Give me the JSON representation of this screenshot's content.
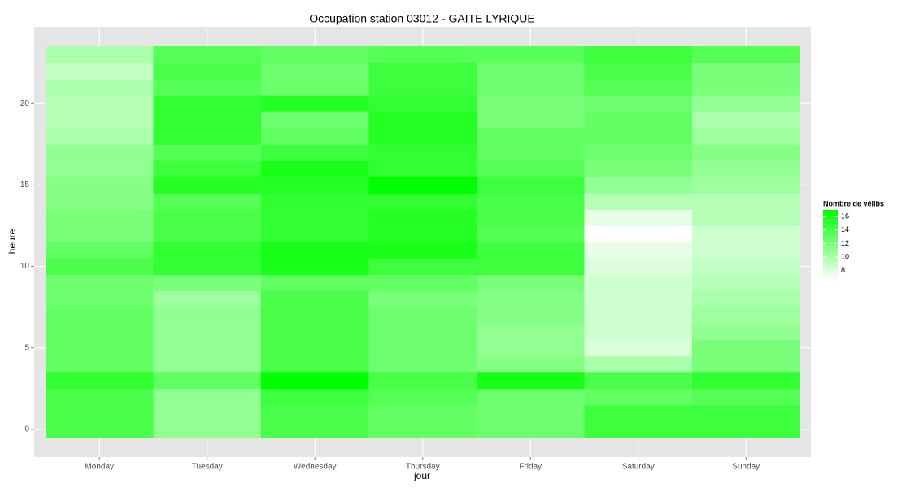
{
  "chart_data": {
    "type": "heatmap",
    "title": "Occupation station 03012 - GAITE LYRIQUE",
    "x_label": "jour",
    "y_label": "heure",
    "categories": [
      "Monday",
      "Tuesday",
      "Wednesday",
      "Thursday",
      "Friday",
      "Saturday",
      "Sunday"
    ],
    "y": [
      0,
      1,
      2,
      3,
      4,
      5,
      6,
      7,
      8,
      9,
      10,
      11,
      12,
      13,
      14,
      15,
      16,
      17,
      18,
      19,
      20,
      21,
      22,
      23
    ],
    "z": [
      [
        14,
        14,
        14,
        15,
        13,
        13,
        13,
        13,
        12.5,
        12.5,
        14,
        13,
        12,
        12,
        11.5,
        11.5,
        11,
        11,
        10,
        9.5,
        9.5,
        10,
        9,
        10
      ],
      [
        11,
        11,
        11,
        13,
        11,
        11,
        11,
        11,
        10.5,
        12,
        15,
        15,
        14,
        14,
        13.5,
        15.5,
        14.5,
        13.5,
        15,
        15,
        15,
        13.5,
        14,
        13.5
      ],
      [
        14,
        14,
        14.5,
        17,
        14,
        14,
        14,
        14,
        14,
        13,
        16,
        16,
        15,
        15,
        15,
        15.5,
        16,
        14.5,
        13,
        12.5,
        15.5,
        12.5,
        12.5,
        13
      ],
      [
        13,
        13,
        13.5,
        14,
        12.5,
        12.5,
        12.5,
        12.5,
        12,
        13,
        14.5,
        16,
        15.5,
        15.5,
        15,
        17,
        15,
        15,
        15.5,
        15.5,
        15,
        14.5,
        14.5,
        13.5
      ],
      [
        12.5,
        12.5,
        12.5,
        16,
        11.5,
        11,
        11,
        11.5,
        11.5,
        12,
        14.5,
        14.5,
        13.5,
        14,
        14,
        14.5,
        13.5,
        13,
        13,
        12,
        12,
        12.5,
        12.5,
        13.5
      ],
      [
        14.5,
        14.5,
        13,
        14,
        10,
        8,
        8.5,
        8.5,
        8.5,
        8.5,
        8,
        7.5,
        6.5,
        7.5,
        9.5,
        11,
        12,
        12.5,
        13,
        13,
        12.5,
        13.5,
        14,
        14.5
      ],
      [
        14.5,
        14.5,
        13.5,
        15,
        12,
        12,
        11,
        10.5,
        10,
        9.5,
        9,
        8.5,
        8.5,
        9.5,
        9.5,
        10.5,
        11,
        11.5,
        10.5,
        10,
        11,
        12,
        12,
        13.5
      ]
    ],
    "ylim": [
      -1.7,
      24.7
    ],
    "yticks": [
      0,
      5,
      10,
      15,
      20
    ],
    "grid": true,
    "legend_title": "Nombre de vélibs",
    "colorbar_lim": [
      6.5,
      17
    ],
    "colorbar_ticks": [
      8,
      10,
      12,
      14,
      16
    ],
    "low_color": "#ffffff",
    "high_color": "#00ff00"
  }
}
